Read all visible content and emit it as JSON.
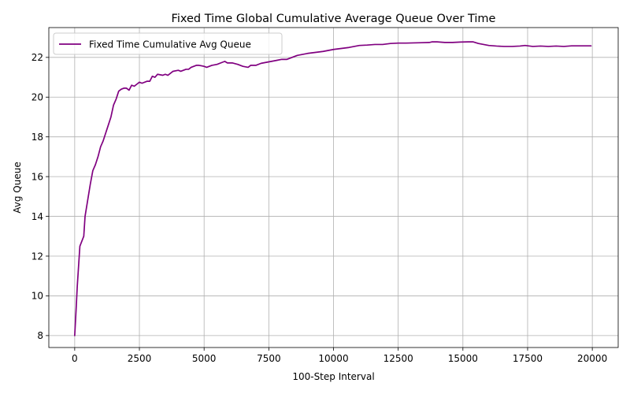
{
  "chart_data": {
    "type": "line",
    "title": "Fixed Time Global Cumulative Average Queue Over Time",
    "xlabel": "100-Step Interval",
    "ylabel": "Avg Queue",
    "xlim": [
      -1000,
      21000
    ],
    "ylim": [
      7.4,
      23.5
    ],
    "xticks": [
      0,
      2500,
      5000,
      7500,
      10000,
      12500,
      15000,
      17500,
      20000
    ],
    "yticks": [
      8,
      10,
      12,
      14,
      16,
      18,
      20,
      22
    ],
    "grid": true,
    "legend_position": "top-left",
    "series": [
      {
        "name": "Fixed Time Cumulative Avg Queue",
        "color": "#800080",
        "points": [
          [
            0,
            8.0
          ],
          [
            50,
            9.2
          ],
          [
            100,
            10.5
          ],
          [
            150,
            11.5
          ],
          [
            200,
            12.5
          ],
          [
            350,
            13.0
          ],
          [
            400,
            14.0
          ],
          [
            500,
            14.8
          ],
          [
            600,
            15.6
          ],
          [
            700,
            16.3
          ],
          [
            800,
            16.6
          ],
          [
            900,
            17.0
          ],
          [
            1000,
            17.5
          ],
          [
            1100,
            17.8
          ],
          [
            1200,
            18.2
          ],
          [
            1300,
            18.6
          ],
          [
            1400,
            19.0
          ],
          [
            1500,
            19.6
          ],
          [
            1600,
            19.9
          ],
          [
            1700,
            20.3
          ],
          [
            1800,
            20.4
          ],
          [
            1900,
            20.45
          ],
          [
            2000,
            20.45
          ],
          [
            2100,
            20.35
          ],
          [
            2200,
            20.6
          ],
          [
            2300,
            20.55
          ],
          [
            2400,
            20.65
          ],
          [
            2500,
            20.75
          ],
          [
            2600,
            20.7
          ],
          [
            2800,
            20.8
          ],
          [
            2900,
            20.8
          ],
          [
            3000,
            21.05
          ],
          [
            3100,
            21.0
          ],
          [
            3200,
            21.15
          ],
          [
            3400,
            21.1
          ],
          [
            3500,
            21.15
          ],
          [
            3600,
            21.1
          ],
          [
            3800,
            21.3
          ],
          [
            4000,
            21.35
          ],
          [
            4100,
            21.3
          ],
          [
            4300,
            21.4
          ],
          [
            4400,
            21.4
          ],
          [
            4500,
            21.5
          ],
          [
            4700,
            21.6
          ],
          [
            4800,
            21.6
          ],
          [
            5000,
            21.55
          ],
          [
            5100,
            21.5
          ],
          [
            5300,
            21.6
          ],
          [
            5500,
            21.65
          ],
          [
            5700,
            21.75
          ],
          [
            5800,
            21.8
          ],
          [
            5900,
            21.72
          ],
          [
            6100,
            21.72
          ],
          [
            6300,
            21.65
          ],
          [
            6500,
            21.55
          ],
          [
            6700,
            21.5
          ],
          [
            6800,
            21.6
          ],
          [
            7000,
            21.6
          ],
          [
            7200,
            21.7
          ],
          [
            7400,
            21.75
          ],
          [
            7600,
            21.8
          ],
          [
            7800,
            21.85
          ],
          [
            8000,
            21.9
          ],
          [
            8200,
            21.9
          ],
          [
            8400,
            22.0
          ],
          [
            8600,
            22.1
          ],
          [
            8800,
            22.15
          ],
          [
            9000,
            22.2
          ],
          [
            9300,
            22.25
          ],
          [
            9600,
            22.3
          ],
          [
            9800,
            22.35
          ],
          [
            10000,
            22.4
          ],
          [
            10300,
            22.45
          ],
          [
            10600,
            22.5
          ],
          [
            10800,
            22.55
          ],
          [
            11000,
            22.6
          ],
          [
            11300,
            22.62
          ],
          [
            11600,
            22.65
          ],
          [
            11900,
            22.65
          ],
          [
            12200,
            22.7
          ],
          [
            12500,
            22.72
          ],
          [
            12800,
            22.72
          ],
          [
            13100,
            22.73
          ],
          [
            13400,
            22.74
          ],
          [
            13700,
            22.75
          ],
          [
            13800,
            22.78
          ],
          [
            14000,
            22.78
          ],
          [
            14300,
            22.75
          ],
          [
            14600,
            22.75
          ],
          [
            14900,
            22.77
          ],
          [
            15200,
            22.78
          ],
          [
            15400,
            22.78
          ],
          [
            15600,
            22.7
          ],
          [
            15800,
            22.65
          ],
          [
            16000,
            22.6
          ],
          [
            16300,
            22.57
          ],
          [
            16600,
            22.55
          ],
          [
            16900,
            22.55
          ],
          [
            17200,
            22.57
          ],
          [
            17400,
            22.6
          ],
          [
            17700,
            22.55
          ],
          [
            18000,
            22.57
          ],
          [
            18300,
            22.55
          ],
          [
            18600,
            22.57
          ],
          [
            18900,
            22.55
          ],
          [
            19200,
            22.58
          ],
          [
            19500,
            22.58
          ],
          [
            19800,
            22.58
          ],
          [
            19950,
            22.58
          ]
        ]
      }
    ]
  }
}
